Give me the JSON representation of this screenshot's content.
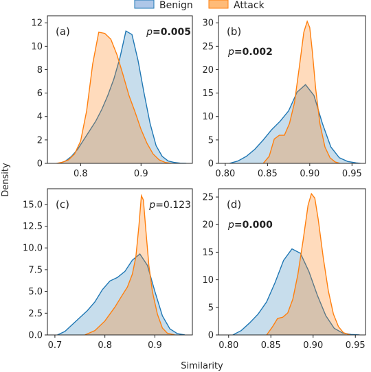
{
  "figure": {
    "xlabel": "Similarity",
    "ylabel": "Density",
    "legend": {
      "placement": "top-center",
      "entries": [
        {
          "name": "Benign",
          "color": "#1f77b4",
          "fill": "#aec7e8"
        },
        {
          "name": "Attack",
          "color": "#ff7f0e",
          "fill": "#ffbb78"
        }
      ]
    }
  },
  "chart_data": [
    {
      "type": "area",
      "panel": "(a)",
      "pvalue": {
        "prefix": "p",
        "eq": "=",
        "value": "0.005",
        "bold": true
      },
      "xlim": [
        0.745,
        0.985
      ],
      "ylim": [
        0,
        12.6
      ],
      "xticks": [
        0.8,
        0.9
      ],
      "xticklabels": [
        "0.8",
        "0.9"
      ],
      "yticks": [
        0,
        2,
        4,
        6,
        8,
        10,
        12
      ],
      "yticklabels": [
        "0",
        "2",
        "4",
        "6",
        "8",
        "10",
        "12"
      ],
      "series": [
        {
          "name": "Benign",
          "x": [
            0.765,
            0.775,
            0.785,
            0.795,
            0.805,
            0.815,
            0.825,
            0.835,
            0.845,
            0.855,
            0.865,
            0.875,
            0.885,
            0.895,
            0.905,
            0.915,
            0.925,
            0.935,
            0.945,
            0.955,
            0.965,
            0.975
          ],
          "values": [
            0.0,
            0.2,
            0.6,
            1.2,
            2.0,
            2.8,
            3.6,
            4.6,
            5.8,
            7.2,
            9.0,
            11.3,
            11.0,
            8.8,
            6.0,
            3.4,
            1.5,
            0.6,
            0.2,
            0.08,
            0.02,
            0.0
          ]
        },
        {
          "name": "Attack",
          "x": [
            0.76,
            0.77,
            0.78,
            0.79,
            0.8,
            0.81,
            0.82,
            0.83,
            0.84,
            0.85,
            0.86,
            0.87,
            0.88,
            0.89,
            0.9,
            0.91,
            0.92,
            0.93,
            0.94,
            0.95
          ],
          "values": [
            0.0,
            0.1,
            0.3,
            0.8,
            1.9,
            4.5,
            8.5,
            11.2,
            11.1,
            10.6,
            9.3,
            7.6,
            5.8,
            4.4,
            2.9,
            1.7,
            0.8,
            0.3,
            0.08,
            0.0
          ]
        }
      ]
    },
    {
      "type": "area",
      "panel": "(b)",
      "pvalue": {
        "prefix": "p",
        "eq": "=",
        "value": "0.002",
        "bold": true
      },
      "xlim": [
        0.792,
        0.966
      ],
      "ylim": [
        0,
        31.5
      ],
      "xticks": [
        0.8,
        0.85,
        0.9,
        0.95
      ],
      "xticklabels": [
        "0.80",
        "0.85",
        "0.90",
        "0.95"
      ],
      "yticks": [
        0,
        5,
        10,
        15,
        20,
        25,
        30
      ],
      "yticklabels": [
        "0",
        "5",
        "10",
        "15",
        "20",
        "25",
        "30"
      ],
      "series": [
        {
          "name": "Benign",
          "x": [
            0.805,
            0.815,
            0.825,
            0.835,
            0.845,
            0.855,
            0.865,
            0.875,
            0.885,
            0.895,
            0.905,
            0.915,
            0.925,
            0.935,
            0.945,
            0.955,
            0.96
          ],
          "values": [
            0.0,
            0.5,
            1.5,
            3.0,
            5.0,
            7.2,
            9.0,
            11.2,
            15.2,
            16.8,
            14.5,
            8.5,
            3.5,
            1.2,
            0.4,
            0.1,
            0.0
          ]
        },
        {
          "name": "Attack",
          "x": [
            0.845,
            0.852,
            0.858,
            0.864,
            0.87,
            0.876,
            0.882,
            0.888,
            0.893,
            0.897,
            0.9,
            0.903,
            0.907,
            0.912,
            0.918,
            0.924,
            0.93,
            0.936
          ],
          "values": [
            0.0,
            1.5,
            5.2,
            6.0,
            6.0,
            8.5,
            13.0,
            21.0,
            28.0,
            30.3,
            29.0,
            24.0,
            16.0,
            8.5,
            3.5,
            1.2,
            0.3,
            0.0
          ]
        }
      ]
    },
    {
      "type": "area",
      "panel": "(c)",
      "pvalue": {
        "prefix": "p",
        "eq": "=",
        "value": "0.123",
        "bold": false
      },
      "xlim": [
        0.685,
        0.975
      ],
      "ylim": [
        0,
        16.8
      ],
      "xticks": [
        0.7,
        0.8,
        0.9
      ],
      "xticklabels": [
        "0.7",
        "0.8",
        "0.9"
      ],
      "yticks": [
        0.0,
        2.5,
        5.0,
        7.5,
        10.0,
        12.5,
        15.0
      ],
      "yticklabels": [
        "0.0",
        "2.5",
        "5.0",
        "7.5",
        "10.0",
        "12.5",
        "15.0"
      ],
      "series": [
        {
          "name": "Benign",
          "x": [
            0.705,
            0.72,
            0.735,
            0.75,
            0.765,
            0.78,
            0.795,
            0.81,
            0.825,
            0.84,
            0.855,
            0.87,
            0.885,
            0.9,
            0.915,
            0.93,
            0.945,
            0.96
          ],
          "values": [
            0.0,
            0.4,
            1.2,
            2.0,
            2.8,
            3.8,
            5.2,
            6.2,
            6.6,
            7.3,
            8.6,
            9.3,
            8.0,
            5.0,
            2.2,
            0.7,
            0.15,
            0.0
          ]
        },
        {
          "name": "Attack",
          "x": [
            0.76,
            0.78,
            0.8,
            0.82,
            0.835,
            0.845,
            0.855,
            0.862,
            0.868,
            0.873,
            0.877,
            0.882,
            0.888,
            0.895,
            0.905,
            0.915,
            0.925,
            0.94
          ],
          "values": [
            0.0,
            0.5,
            1.6,
            3.2,
            4.6,
            5.5,
            7.0,
            9.0,
            12.5,
            16.0,
            15.5,
            12.0,
            8.0,
            5.0,
            2.4,
            0.8,
            0.2,
            0.0
          ]
        }
      ]
    },
    {
      "type": "area",
      "panel": "(d)",
      "pvalue": {
        "prefix": "p",
        "eq": "=",
        "value": "0.000",
        "bold": true
      },
      "xlim": [
        0.788,
        0.962
      ],
      "ylim": [
        0,
        26.5
      ],
      "xticks": [
        0.8,
        0.85,
        0.9,
        0.95
      ],
      "xticklabels": [
        "0.80",
        "0.85",
        "0.90",
        "0.95"
      ],
      "yticks": [
        0,
        5,
        10,
        15,
        20,
        25
      ],
      "yticklabels": [
        "0",
        "5",
        "10",
        "15",
        "20",
        "25"
      ],
      "series": [
        {
          "name": "Benign",
          "x": [
            0.805,
            0.815,
            0.825,
            0.835,
            0.845,
            0.855,
            0.865,
            0.875,
            0.885,
            0.895,
            0.905,
            0.915,
            0.925,
            0.935,
            0.945,
            0.955
          ],
          "values": [
            0.0,
            0.8,
            2.2,
            3.8,
            6.0,
            9.5,
            13.5,
            15.6,
            14.8,
            11.5,
            7.2,
            3.5,
            1.2,
            0.35,
            0.08,
            0.0
          ]
        },
        {
          "name": "Attack",
          "x": [
            0.845,
            0.852,
            0.858,
            0.864,
            0.87,
            0.876,
            0.882,
            0.888,
            0.894,
            0.898,
            0.902,
            0.906,
            0.912,
            0.918,
            0.924,
            0.93,
            0.936,
            0.944
          ],
          "values": [
            0.0,
            1.5,
            3.0,
            3.2,
            4.0,
            6.5,
            11.0,
            17.0,
            23.5,
            25.6,
            24.8,
            21.0,
            14.0,
            8.0,
            3.8,
            1.5,
            0.4,
            0.0
          ]
        }
      ]
    }
  ]
}
